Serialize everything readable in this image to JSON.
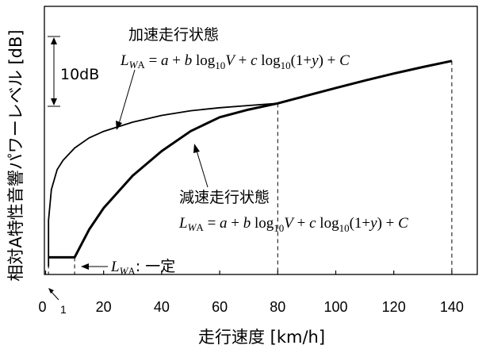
{
  "chart_data": {
    "type": "line",
    "xlabel": "走行速度 [km/h]",
    "ylabel": "相対A特性音響パワーレベル [dB]",
    "xlim": [
      0,
      150
    ],
    "ylim": [
      0,
      70
    ],
    "x_ticks": [
      "0",
      "20",
      "40",
      "60",
      "80",
      "100",
      "120",
      "140"
    ],
    "x_tick_values": [
      0,
      20,
      40,
      60,
      80,
      100,
      120,
      140
    ],
    "x_small_tick": {
      "label": "1",
      "value": 1
    },
    "grid": false,
    "series": [
      {
        "name": "加速走行状態",
        "style": "thin",
        "x": [
          1,
          1,
          2,
          4,
          6,
          10,
          15,
          20,
          30,
          40,
          50,
          60,
          70,
          80
        ],
        "y": [
          0,
          15,
          25,
          31.5,
          34.5,
          38.5,
          41.8,
          43.9,
          46.9,
          49.1,
          50.6,
          51.6,
          52.3,
          53
        ]
      },
      {
        "name": "減速走行状態",
        "style": "thick",
        "x": [
          1,
          1,
          10,
          15,
          20,
          30,
          40,
          50,
          60,
          70,
          80,
          90,
          100,
          110,
          120,
          130,
          140
        ],
        "y": [
          3,
          3,
          3,
          12,
          19,
          29.5,
          37.5,
          44,
          48.5,
          51,
          53,
          55.5,
          58,
          60.4,
          62.7,
          64.8,
          66.8
        ]
      }
    ],
    "dashed_markers_x": [
      1,
      10,
      80,
      140
    ],
    "scale_bar": {
      "label": "10dB",
      "span_db": 10
    },
    "annotations": {
      "accel_label": "加速走行状態",
      "decel_label": "減速走行状態",
      "constant_label": ": 一定",
      "formula_accel": "L_WA = a + b log10 V + c log10(1+y) + C",
      "formula_decel": "L_WA = a + b log10 V + c log10(1+y) + C"
    }
  }
}
